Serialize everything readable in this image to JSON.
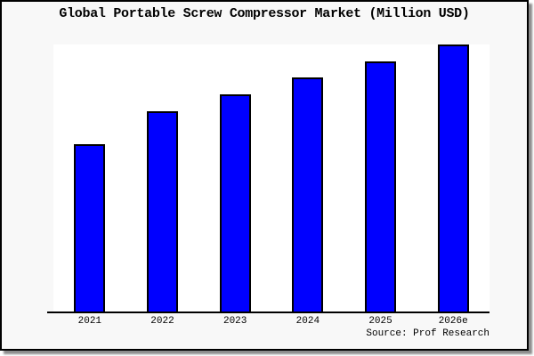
{
  "window": {
    "background": "#f8f8f8",
    "border_color": "#000000",
    "shadow_color": "#777777"
  },
  "title": "Global Portable Screw Compressor Market (Million USD)",
  "source_label": "Source: Prof Research",
  "chart_data": {
    "type": "bar",
    "title": "Global Portable Screw Compressor Market (Million USD)",
    "categories": [
      "2021",
      "2022",
      "2023",
      "2024",
      "2025",
      "2026e"
    ],
    "values": [
      62.7,
      75.0,
      81.3,
      87.7,
      93.7,
      100.0
    ],
    "value_note": "Chart displays no y-axis, tick values, gridlines, or data labels; values are measured relative bar heights indexed to 2026e = 100",
    "xlabel": "",
    "ylabel": "",
    "ylim": [
      0,
      100
    ],
    "grid": false,
    "legend": false,
    "bar_color": "#0000ff",
    "bar_border_color": "#000000",
    "plot_background": "#ffffff",
    "source": "Source: Prof Research"
  }
}
